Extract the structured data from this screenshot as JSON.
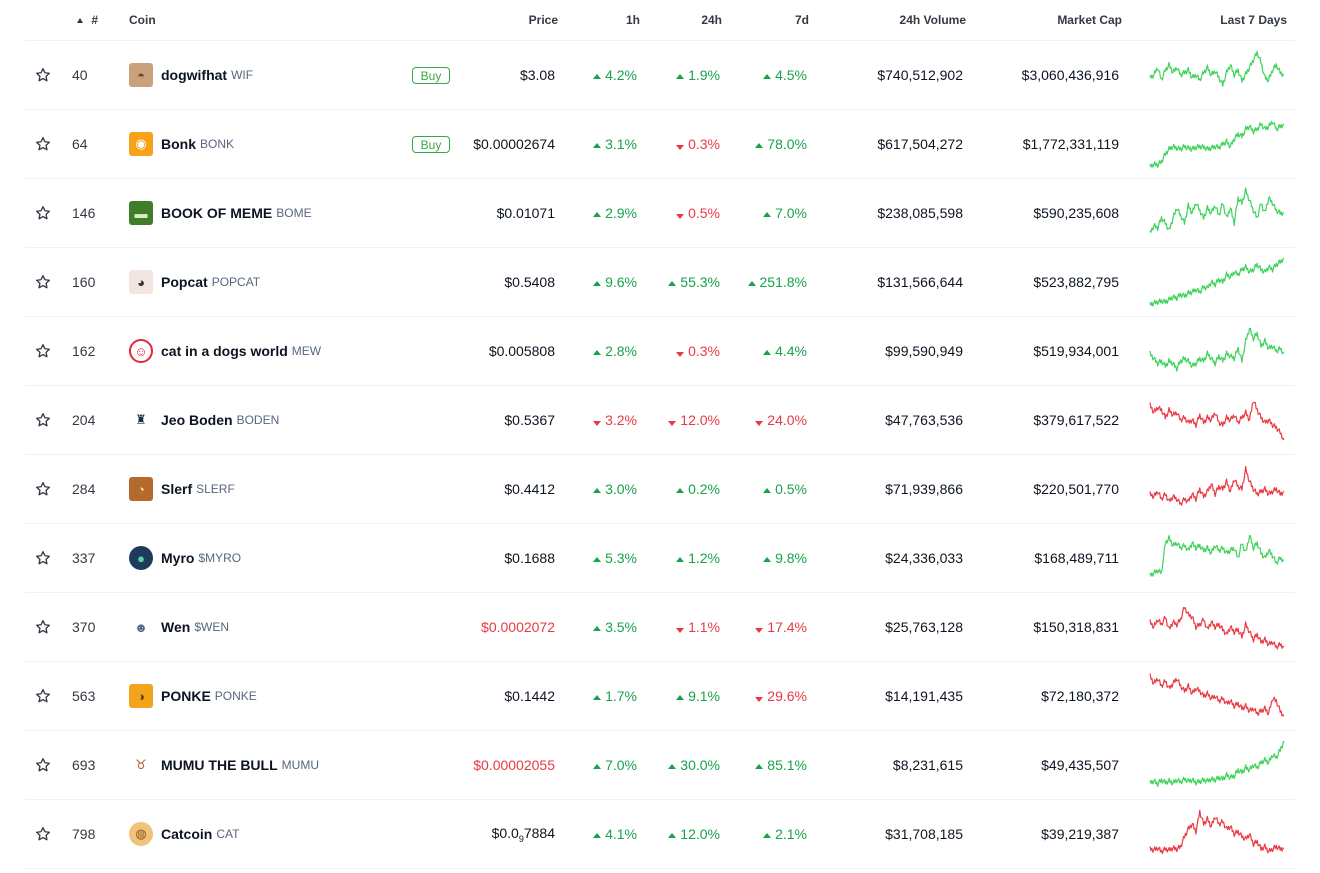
{
  "header": {
    "rank_label": "#",
    "coin_label": "Coin",
    "price_label": "Price",
    "h1_label": "1h",
    "h24_label": "24h",
    "d7_label": "7d",
    "volume_label": "24h Volume",
    "mcap_label": "Market Cap",
    "spark_label": "Last 7 Days"
  },
  "colors": {
    "up": "#16a34a",
    "down": "#ea3943",
    "spark_up": "#3ed35a",
    "spark_down": "#ea3943"
  },
  "rows": [
    {
      "rank": "40",
      "name": "dogwifhat",
      "symbol": "WIF",
      "buy": "Buy",
      "price": "$3.08",
      "h1": "4.2%",
      "h1_dir": "up",
      "h24": "1.9%",
      "h24_dir": "up",
      "d7": "4.5%",
      "d7_dir": "up",
      "volume": "$740,512,902",
      "mcap": "$3,060,436,916",
      "icon": "dog-hat-icon",
      "spark_dir": "up",
      "spark": [
        0.55,
        0.5,
        0.35,
        0.6,
        0.4,
        0.3,
        0.45,
        0.35,
        0.5,
        0.45,
        0.4,
        0.55,
        0.5,
        0.6,
        0.45,
        0.35,
        0.5,
        0.42,
        0.55,
        0.7,
        0.45,
        0.3,
        0.5,
        0.4,
        0.62,
        0.48,
        0.35,
        0.2,
        0.05,
        0.25,
        0.55,
        0.6,
        0.4,
        0.3,
        0.45,
        0.5
      ]
    },
    {
      "rank": "64",
      "name": "Bonk",
      "symbol": "BONK",
      "buy": "Buy",
      "price": "$0.00002674",
      "h1": "3.1%",
      "h1_dir": "up",
      "h24": "0.3%",
      "h24_dir": "down",
      "d7": "78.0%",
      "d7_dir": "up",
      "volume": "$617,504,272",
      "mcap": "$1,772,331,119",
      "icon": "bonk-icon",
      "spark_dir": "up",
      "spark": [
        0.95,
        0.9,
        0.92,
        0.85,
        0.7,
        0.6,
        0.55,
        0.58,
        0.6,
        0.55,
        0.58,
        0.6,
        0.57,
        0.55,
        0.56,
        0.6,
        0.58,
        0.55,
        0.57,
        0.5,
        0.45,
        0.55,
        0.4,
        0.3,
        0.35,
        0.2,
        0.15,
        0.25,
        0.2,
        0.1,
        0.2,
        0.15,
        0.05,
        0.2,
        0.15,
        0.1
      ]
    },
    {
      "rank": "146",
      "name": "BOOK OF MEME",
      "symbol": "BOME",
      "buy": "",
      "price": "$0.01071",
      "h1": "2.9%",
      "h1_dir": "up",
      "h24": "0.5%",
      "h24_dir": "down",
      "d7": "7.0%",
      "d7_dir": "up",
      "volume": "$238,085,598",
      "mcap": "$590,235,608",
      "icon": "pepe-book-icon",
      "spark_dir": "up",
      "spark": [
        0.9,
        0.75,
        0.8,
        0.6,
        0.7,
        0.85,
        0.6,
        0.4,
        0.55,
        0.7,
        0.35,
        0.5,
        0.3,
        0.45,
        0.6,
        0.4,
        0.5,
        0.35,
        0.55,
        0.3,
        0.6,
        0.4,
        0.7,
        0.2,
        0.3,
        0.05,
        0.25,
        0.45,
        0.6,
        0.3,
        0.5,
        0.2,
        0.3,
        0.45,
        0.5,
        0.5
      ]
    },
    {
      "rank": "160",
      "name": "Popcat",
      "symbol": "POPCAT",
      "buy": "",
      "price": "$0.5408",
      "h1": "9.6%",
      "h1_dir": "up",
      "h24": "55.3%",
      "h24_dir": "up",
      "d7": "251.8%",
      "d7_dir": "up",
      "volume": "$131,566,644",
      "mcap": "$523,882,795",
      "icon": "popcat-icon",
      "spark_dir": "up",
      "spark": [
        0.95,
        0.92,
        0.9,
        0.88,
        0.9,
        0.85,
        0.8,
        0.82,
        0.75,
        0.78,
        0.72,
        0.7,
        0.65,
        0.7,
        0.6,
        0.62,
        0.5,
        0.55,
        0.45,
        0.5,
        0.35,
        0.4,
        0.3,
        0.35,
        0.25,
        0.2,
        0.3,
        0.25,
        0.15,
        0.25,
        0.3,
        0.2,
        0.25,
        0.15,
        0.1,
        0.02
      ]
    },
    {
      "rank": "162",
      "name": "cat in a dogs world",
      "symbol": "MEW",
      "buy": "",
      "price": "$0.005808",
      "h1": "2.8%",
      "h1_dir": "up",
      "h24": "0.3%",
      "h24_dir": "down",
      "d7": "4.4%",
      "d7_dir": "up",
      "volume": "$99,590,949",
      "mcap": "$519,934,001",
      "icon": "mew-icon",
      "spark_dir": "up",
      "spark": [
        0.55,
        0.65,
        0.75,
        0.7,
        0.8,
        0.7,
        0.75,
        0.85,
        0.7,
        0.65,
        0.7,
        0.8,
        0.75,
        0.65,
        0.7,
        0.55,
        0.65,
        0.75,
        0.6,
        0.7,
        0.55,
        0.6,
        0.65,
        0.45,
        0.7,
        0.3,
        0.05,
        0.25,
        0.15,
        0.4,
        0.3,
        0.45,
        0.4,
        0.5,
        0.45,
        0.55
      ]
    },
    {
      "rank": "204",
      "name": "Jeo Boden",
      "symbol": "BODEN",
      "buy": "",
      "price": "$0.5367",
      "h1": "3.2%",
      "h1_dir": "down",
      "h24": "12.0%",
      "h24_dir": "down",
      "d7": "24.0%",
      "d7_dir": "down",
      "volume": "$47,763,536",
      "mcap": "$379,617,522",
      "icon": "boden-icon",
      "spark_dir": "down",
      "spark": [
        0.2,
        0.35,
        0.25,
        0.3,
        0.45,
        0.3,
        0.4,
        0.35,
        0.5,
        0.45,
        0.55,
        0.5,
        0.6,
        0.4,
        0.55,
        0.45,
        0.5,
        0.35,
        0.55,
        0.6,
        0.45,
        0.5,
        0.4,
        0.55,
        0.45,
        0.35,
        0.5,
        0.1,
        0.3,
        0.45,
        0.55,
        0.5,
        0.6,
        0.65,
        0.75,
        0.9
      ]
    },
    {
      "rank": "284",
      "name": "Slerf",
      "symbol": "SLERF",
      "buy": "",
      "price": "$0.4412",
      "h1": "3.0%",
      "h1_dir": "up",
      "h24": "0.2%",
      "h24_dir": "up",
      "d7": "0.5%",
      "d7_dir": "up",
      "volume": "$71,939,866",
      "mcap": "$220,501,770",
      "icon": "slerf-icon",
      "spark_dir": "down",
      "spark": [
        0.6,
        0.65,
        0.55,
        0.7,
        0.6,
        0.75,
        0.65,
        0.7,
        0.8,
        0.7,
        0.75,
        0.6,
        0.7,
        0.5,
        0.65,
        0.55,
        0.4,
        0.6,
        0.45,
        0.5,
        0.35,
        0.55,
        0.3,
        0.45,
        0.5,
        0.1,
        0.35,
        0.5,
        0.6,
        0.55,
        0.5,
        0.6,
        0.55,
        0.5,
        0.6,
        0.55
      ]
    },
    {
      "rank": "337",
      "name": "Myro",
      "symbol": "$MYRO",
      "buy": "",
      "price": "$0.1688",
      "h1": "5.3%",
      "h1_dir": "up",
      "h24": "1.2%",
      "h24_dir": "up",
      "d7": "9.8%",
      "d7_dir": "up",
      "volume": "$24,336,033",
      "mcap": "$168,489,711",
      "icon": "myro-icon",
      "spark_dir": "up",
      "spark": [
        0.85,
        0.8,
        0.75,
        0.8,
        0.2,
        0.1,
        0.25,
        0.2,
        0.3,
        0.25,
        0.35,
        0.2,
        0.3,
        0.25,
        0.35,
        0.3,
        0.4,
        0.25,
        0.35,
        0.3,
        0.4,
        0.35,
        0.3,
        0.5,
        0.2,
        0.4,
        0.05,
        0.3,
        0.2,
        0.4,
        0.5,
        0.35,
        0.45,
        0.6,
        0.5,
        0.55
      ]
    },
    {
      "rank": "370",
      "name": "Wen",
      "symbol": "$WEN",
      "buy": "",
      "price": "$0.0002072",
      "h1": "3.5%",
      "h1_dir": "up",
      "h24": "1.1%",
      "h24_dir": "down",
      "d7": "17.4%",
      "d7_dir": "down",
      "volume": "$25,763,128",
      "mcap": "$150,318,831",
      "icon": "wen-icon",
      "spark_dir": "down",
      "spark": [
        0.4,
        0.5,
        0.35,
        0.45,
        0.3,
        0.55,
        0.4,
        0.45,
        0.35,
        0.1,
        0.25,
        0.3,
        0.5,
        0.45,
        0.35,
        0.55,
        0.4,
        0.5,
        0.45,
        0.55,
        0.65,
        0.5,
        0.6,
        0.55,
        0.7,
        0.45,
        0.6,
        0.75,
        0.65,
        0.8,
        0.75,
        0.85,
        0.8,
        0.9,
        0.85,
        0.9
      ]
    },
    {
      "rank": "563",
      "name": "PONKE",
      "symbol": "PONKE",
      "buy": "",
      "price": "$0.1442",
      "h1": "1.7%",
      "h1_dir": "up",
      "h24": "9.1%",
      "h24_dir": "up",
      "d7": "29.6%",
      "d7_dir": "down",
      "volume": "$14,191,435",
      "mcap": "$72,180,372",
      "icon": "ponke-icon",
      "spark_dir": "down",
      "spark": [
        0.1,
        0.25,
        0.15,
        0.3,
        0.2,
        0.35,
        0.25,
        0.15,
        0.3,
        0.4,
        0.3,
        0.45,
        0.35,
        0.4,
        0.5,
        0.45,
        0.55,
        0.5,
        0.6,
        0.55,
        0.65,
        0.6,
        0.7,
        0.65,
        0.75,
        0.7,
        0.8,
        0.75,
        0.85,
        0.8,
        0.75,
        0.85,
        0.55,
        0.6,
        0.8,
        0.9
      ]
    },
    {
      "rank": "693",
      "name": "MUMU THE BULL",
      "symbol": "MUMU",
      "buy": "",
      "price": "$0.00002055",
      "h1": "7.0%",
      "h1_dir": "up",
      "h24": "30.0%",
      "h24_dir": "up",
      "d7": "85.1%",
      "d7_dir": "up",
      "volume": "$8,231,615",
      "mcap": "$49,435,507",
      "icon": "mumu-icon",
      "spark_dir": "up",
      "spark": [
        0.85,
        0.82,
        0.88,
        0.8,
        0.85,
        0.82,
        0.86,
        0.8,
        0.84,
        0.78,
        0.82,
        0.8,
        0.85,
        0.83,
        0.8,
        0.82,
        0.78,
        0.8,
        0.75,
        0.78,
        0.7,
        0.75,
        0.72,
        0.6,
        0.65,
        0.55,
        0.6,
        0.5,
        0.55,
        0.45,
        0.4,
        0.45,
        0.3,
        0.35,
        0.2,
        0.02
      ]
    },
    {
      "rank": "798",
      "name": "Catcoin",
      "symbol": "CAT",
      "buy": "",
      "price_main": "$0.0",
      "price_sub": "9",
      "price_rest": "7884",
      "price": "",
      "h1": "4.1%",
      "h1_dir": "up",
      "h24": "12.0%",
      "h24_dir": "up",
      "d7": "2.1%",
      "d7_dir": "up",
      "volume": "$31,708,185",
      "mcap": "$39,219,387",
      "icon": "catcoin-icon",
      "spark_dir": "down",
      "spark": [
        0.8,
        0.82,
        0.78,
        0.85,
        0.8,
        0.82,
        0.78,
        0.8,
        0.75,
        0.55,
        0.4,
        0.3,
        0.45,
        0.05,
        0.3,
        0.2,
        0.35,
        0.15,
        0.3,
        0.25,
        0.4,
        0.35,
        0.5,
        0.45,
        0.55,
        0.6,
        0.5,
        0.7,
        0.65,
        0.8,
        0.75,
        0.85,
        0.8,
        0.75,
        0.8,
        0.78
      ]
    }
  ]
}
